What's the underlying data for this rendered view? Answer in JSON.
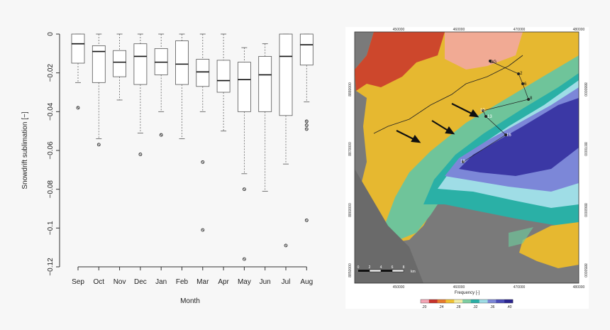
{
  "chart_data": [
    {
      "type": "boxplot",
      "title": "",
      "xlabel": "Month",
      "ylabel": "Snowdrift sublimation [−]",
      "ylim": [
        -0.12,
        0
      ],
      "yticks": [
        0,
        -0.02,
        -0.04,
        -0.06,
        -0.08,
        -0.1,
        -0.12
      ],
      "ytick_labels": [
        "0",
        "−0.02",
        "−0.04",
        "−0.06",
        "−0.08",
        "−0.1",
        "−0.12"
      ],
      "categories": [
        "Sep",
        "Oct",
        "Nov",
        "Dec",
        "Jan",
        "Feb",
        "Mar",
        "Apr",
        "May",
        "Jun",
        "Jul",
        "Aug"
      ],
      "boxes": [
        {
          "whisker_low": -0.025,
          "q1": -0.015,
          "median": -0.005,
          "q3": 0.0,
          "whisker_high": 0.0,
          "outliers": [
            -0.038
          ]
        },
        {
          "whisker_low": -0.054,
          "q1": -0.025,
          "median": -0.009,
          "q3": -0.006,
          "whisker_high": 0.0,
          "outliers": [
            -0.057
          ]
        },
        {
          "whisker_low": -0.034,
          "q1": -0.022,
          "median": -0.0145,
          "q3": -0.0085,
          "whisker_high": 0.0,
          "outliers": []
        },
        {
          "whisker_low": -0.051,
          "q1": -0.026,
          "median": -0.0115,
          "q3": -0.005,
          "whisker_high": 0.0,
          "outliers": [
            -0.062
          ]
        },
        {
          "whisker_low": -0.04,
          "q1": -0.021,
          "median": -0.0145,
          "q3": -0.0075,
          "whisker_high": 0.0,
          "outliers": [
            -0.052
          ]
        },
        {
          "whisker_low": -0.054,
          "q1": -0.026,
          "median": -0.0155,
          "q3": -0.0035,
          "whisker_high": 0.0,
          "outliers": []
        },
        {
          "whisker_low": -0.04,
          "q1": -0.027,
          "median": -0.0195,
          "q3": -0.013,
          "whisker_high": 0.0,
          "outliers": [
            -0.066,
            -0.101
          ]
        },
        {
          "whisker_low": -0.05,
          "q1": -0.03,
          "median": -0.024,
          "q3": -0.0135,
          "whisker_high": 0.0,
          "outliers": []
        },
        {
          "whisker_low": -0.072,
          "q1": -0.04,
          "median": -0.0235,
          "q3": -0.0145,
          "whisker_high": -0.007,
          "outliers": [
            -0.08,
            -0.116
          ]
        },
        {
          "whisker_low": -0.081,
          "q1": -0.04,
          "median": -0.021,
          "q3": -0.0115,
          "whisker_high": -0.005,
          "outliers": []
        },
        {
          "whisker_low": -0.067,
          "q1": -0.042,
          "median": -0.0115,
          "q3": 0.0,
          "whisker_high": 0.0,
          "outliers": [
            -0.109
          ]
        },
        {
          "whisker_low": -0.035,
          "q1": -0.016,
          "median": -0.0055,
          "q3": 0.0,
          "whisker_high": 0.0,
          "outliers": [
            -0.045,
            -0.047,
            -0.049,
            -0.096
          ]
        }
      ]
    },
    {
      "type": "heatmap",
      "colorbar_title": "Frequency [-]",
      "colorbar_tick_labels": [
        ".20",
        ".24",
        ".28",
        ".32",
        ".36",
        ".40"
      ],
      "colorbar_colors": [
        "#f4a6b6",
        "#c8322b",
        "#e87a2c",
        "#f1c232",
        "#f3eea8",
        "#7fcfa3",
        "#2ab0a6",
        "#9fdde6",
        "#7c87d8",
        "#4b4db8",
        "#2a2590"
      ],
      "x_tick_labels_top": [
        "450000",
        "460000",
        "470000",
        "480000"
      ],
      "x_tick_labels_bottom": [
        "450000",
        "460000",
        "470000",
        "480000"
      ],
      "y_tick_labels_left": [
        "8880000",
        "8870000",
        "8860000",
        "8850000"
      ],
      "y_tick_labels_right": [
        "8880000",
        "8870000",
        "8860000",
        "8850000"
      ],
      "scalebar_labels": [
        "0",
        "2",
        "4",
        "6",
        "8",
        "km"
      ],
      "site_labels": [
        "DG",
        "2",
        "6",
        "8",
        "10",
        "13",
        "16",
        "18"
      ]
    }
  ]
}
